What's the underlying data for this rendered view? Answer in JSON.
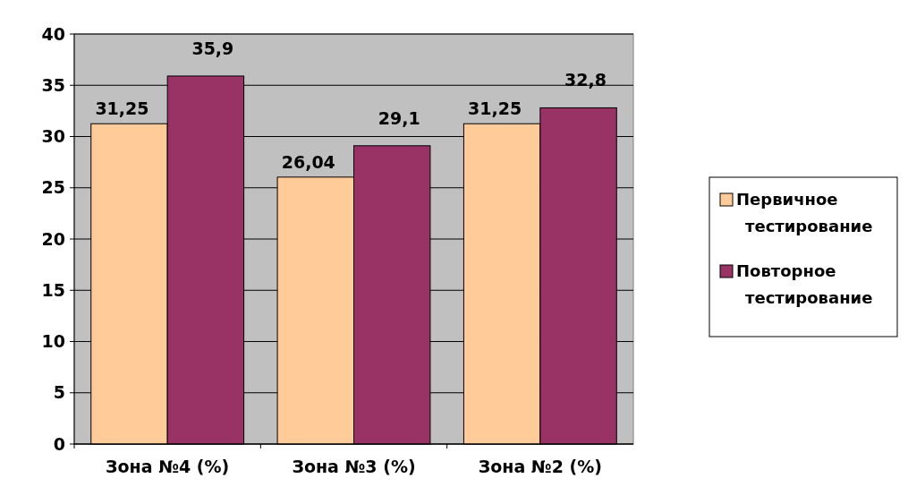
{
  "chart_data": {
    "type": "bar",
    "categories": [
      "Зона №4 (%)",
      "Зона №3 (%)",
      "Зона №2 (%)"
    ],
    "series": [
      {
        "name": "Первичное тестирование",
        "color": "#ffcc99",
        "values": [
          31.25,
          26.04,
          31.25
        ],
        "value_labels": [
          "31,25",
          "26,04",
          "31,25"
        ]
      },
      {
        "name": "Повторное тестирование",
        "color": "#993366",
        "values": [
          35.9,
          29.1,
          32.8
        ],
        "value_labels": [
          "35,9",
          "29,1",
          "32,8"
        ]
      }
    ],
    "ylim": [
      0,
      40
    ],
    "yticks": [
      0,
      5,
      10,
      15,
      20,
      25,
      30,
      35,
      40
    ],
    "grid": "y",
    "legend": "right"
  }
}
